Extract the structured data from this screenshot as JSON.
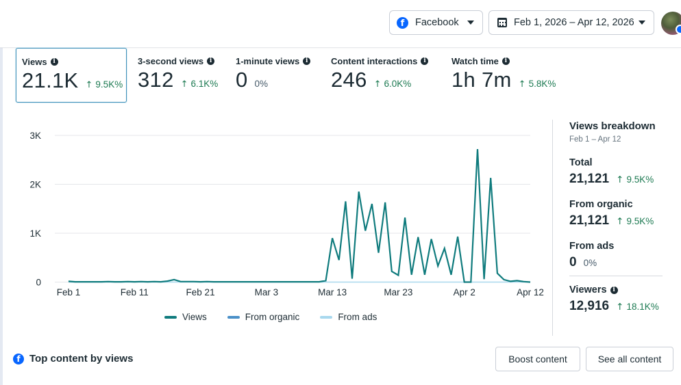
{
  "header": {
    "platform": {
      "label": "Facebook",
      "icon": "facebook-icon"
    },
    "date_range": {
      "label": "Feb 1, 2026 – Apr 12, 2026",
      "icon": "calendar-icon"
    },
    "avatar": {
      "icon": "profile-avatar"
    }
  },
  "metrics": [
    {
      "title": "Views",
      "value": "21.1K",
      "delta": "9.5K%",
      "trend": "up",
      "active": true
    },
    {
      "title": "3-second views",
      "value": "312",
      "delta": "6.1K%",
      "trend": "up",
      "active": false
    },
    {
      "title": "1-minute views",
      "value": "0",
      "delta": "0%",
      "trend": "none",
      "active": false
    },
    {
      "title": "Content interactions",
      "value": "246",
      "delta": "6.0K%",
      "trend": "up",
      "active": false
    },
    {
      "title": "Watch time",
      "value": "1h 7m",
      "delta": "5.8K%",
      "trend": "up",
      "active": false
    }
  ],
  "chart_data": {
    "type": "line",
    "title": "",
    "xlabel": "",
    "ylabel": "",
    "ylim": [
      0,
      3000
    ],
    "yticks": [
      0,
      1000,
      2000,
      3000
    ],
    "ytick_labels": [
      "0",
      "1K",
      "2K",
      "3K"
    ],
    "xtick_labels": [
      "Feb 1",
      "Feb 11",
      "Feb 21",
      "Mar 3",
      "Mar 13",
      "Mar 23",
      "Apr 2",
      "Apr 12"
    ],
    "xtick_day_index": [
      0,
      10,
      20,
      30,
      40,
      50,
      60,
      70
    ],
    "x_start": "Feb 1, 2026",
    "x_end": "Apr 12, 2026",
    "grid": true,
    "legend_position": "bottom",
    "colors": {
      "views": "#0f7b7d",
      "organic": "#4a90c8",
      "ads": "#a8d8ee"
    },
    "series": [
      {
        "name": "Views",
        "values": [
          15,
          5,
          5,
          5,
          5,
          5,
          10,
          5,
          5,
          10,
          5,
          10,
          5,
          10,
          5,
          20,
          50,
          10,
          10,
          10,
          5,
          10,
          5,
          5,
          5,
          5,
          5,
          5,
          5,
          5,
          5,
          5,
          5,
          5,
          5,
          5,
          5,
          5,
          5,
          30,
          900,
          450,
          1650,
          70,
          1850,
          1050,
          1600,
          600,
          1630,
          220,
          140,
          1320,
          150,
          920,
          150,
          880,
          330,
          690,
          150,
          930,
          0,
          0,
          2720,
          60,
          2130,
          180,
          50,
          15,
          30,
          10,
          0
        ]
      },
      {
        "name": "From organic",
        "values": [
          15,
          5,
          5,
          5,
          5,
          5,
          10,
          5,
          5,
          10,
          5,
          10,
          5,
          10,
          5,
          20,
          50,
          10,
          10,
          10,
          5,
          10,
          5,
          5,
          5,
          5,
          5,
          5,
          5,
          5,
          5,
          5,
          5,
          5,
          5,
          5,
          5,
          5,
          5,
          30,
          900,
          450,
          1650,
          70,
          1850,
          1050,
          1600,
          600,
          1630,
          220,
          140,
          1320,
          150,
          920,
          150,
          880,
          330,
          690,
          150,
          930,
          0,
          0,
          2720,
          60,
          2130,
          180,
          50,
          15,
          30,
          10,
          0
        ]
      },
      {
        "name": "From ads",
        "values": [
          0,
          0,
          0,
          0,
          0,
          0,
          0,
          0,
          0,
          0,
          0,
          0,
          0,
          0,
          0,
          0,
          0,
          0,
          0,
          0,
          0,
          0,
          0,
          0,
          0,
          0,
          0,
          0,
          0,
          0,
          0,
          0,
          0,
          0,
          0,
          0,
          0,
          0,
          0,
          0,
          0,
          0,
          0,
          0,
          0,
          0,
          0,
          0,
          0,
          0,
          0,
          0,
          0,
          0,
          0,
          0,
          0,
          0,
          0,
          0,
          0,
          0,
          0,
          0,
          0,
          0,
          0,
          0,
          0,
          0,
          0
        ]
      }
    ]
  },
  "legend": [
    {
      "label": "Views",
      "color": "#0f7b7d"
    },
    {
      "label": "From organic",
      "color": "#4a90c8"
    },
    {
      "label": "From ads",
      "color": "#a8d8ee"
    }
  ],
  "breakdown": {
    "title": "Views breakdown",
    "subtitle": "Feb 1 – Apr 12",
    "items": [
      {
        "label": "Total",
        "value": "21,121",
        "delta": "9.5K%",
        "trend": "up",
        "info": false
      },
      {
        "label": "From organic",
        "value": "21,121",
        "delta": "9.5K%",
        "trend": "up",
        "info": false
      },
      {
        "label": "From ads",
        "value": "0",
        "delta": "0%",
        "trend": "none",
        "info": false
      },
      {
        "label": "Viewers",
        "value": "12,916",
        "delta": "18.1K%",
        "trend": "up",
        "info": true
      }
    ]
  },
  "bottom": {
    "title": "Top content by views",
    "boost_label": "Boost content",
    "see_all_label": "See all content"
  },
  "symbols": {
    "up_arrow": "↑",
    "info": "i",
    "fb": "f"
  }
}
